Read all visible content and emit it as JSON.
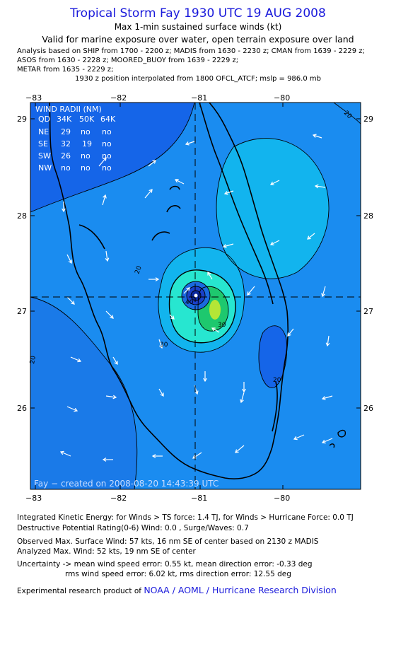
{
  "header": {
    "title": "Tropical Storm Fay 1930 UTC 19 AUG 2008",
    "subtitle1": "Max 1-min sustained surface winds (kt)",
    "subtitle2": "Valid for marine exposure over water, open terrain exposure over land",
    "analysis_lines": [
      "Analysis based on  SHIP from 1700 - 2200 z;  MADIS from 1630 - 2230 z;  CMAN from 1639 - 2229 z;",
      "ASOS from 1630 - 2228 z;  MOORED_BUOY from 1639 - 2229 z;",
      "METAR from 1635 - 2229 z;",
      "1930 z position interpolated from 1800 OFCL_ATCF; mslp = 986.0 mb"
    ]
  },
  "map": {
    "lon_ticks": [
      "−83",
      "−82",
      "−81",
      "−80"
    ],
    "lat_ticks": [
      "29",
      "28",
      "27",
      "26"
    ],
    "center": {
      "lon": -81.0,
      "lat": 27.15
    },
    "contour_labels": [
      "20",
      "20",
      "20",
      "30",
      "40",
      "30",
      "20"
    ],
    "credit": "Fay − created on 2008-08-20 14:43:39 UTC",
    "colors": {
      "ocean_dark": "#1565e8",
      "ring_20": "#1a8cf0",
      "ring_30": "#12b4ee",
      "ring_40": "#27e6d0",
      "ring_50": "#1ec86e",
      "max": "#b4e636",
      "eye_inner": "#0a28a0",
      "eye_outer": "#1a40c8"
    }
  },
  "wind_radii": {
    "title": "WIND RADII (NM)",
    "header": [
      "QD",
      "34K",
      "50K",
      "64K"
    ],
    "rows": [
      [
        "NE",
        "29",
        "no",
        "no"
      ],
      [
        "SE",
        "32",
        "19",
        "no"
      ],
      [
        "SW",
        "26",
        "no",
        "no"
      ],
      [
        "NW",
        "no",
        "no",
        "no"
      ]
    ]
  },
  "footer": {
    "ike": "Integrated Kinetic Energy:  for Winds > TS force: 1.4 TJ,  for Winds > Hurricane Force: 0.0 TJ",
    "dpr": "Destructive Potential Rating(0-6)   Wind: 0.0 , Surge/Waves: 0.7",
    "observed": "Observed Max. Surface Wind: 57 kts, 16 nm SE of center based on 2130 z MADIS",
    "analyzed": "Analyzed Max. Wind: 52 kts, 19 nm SE of center",
    "uncert1": "Uncertainty -> mean wind speed error: 0.55 kt,   mean direction error:  -0.33 deg",
    "uncert2": "rms wind speed error: 6.02 kt,   rms direction error: 12.55 deg",
    "product_prefix": "Experimental research product of ",
    "product_link": "NOAA / AOML / Hurricane Research Division"
  }
}
